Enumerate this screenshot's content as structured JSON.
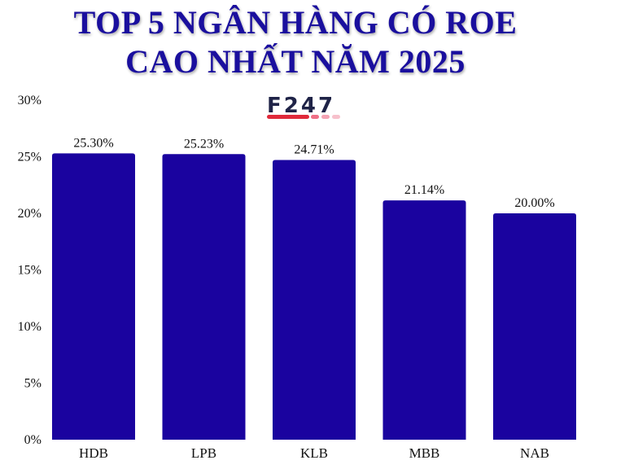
{
  "chart_data": {
    "type": "bar",
    "title_lines": [
      "TOP 5 NGÂN HÀNG CÓ ROE",
      "CAO NHẤT NĂM 2025"
    ],
    "categories": [
      "HDB",
      "LPB",
      "KLB",
      "MBB",
      "NAB"
    ],
    "values": [
      25.3,
      25.23,
      24.71,
      21.14,
      20.0
    ],
    "data_labels": [
      "25.30%",
      "25.23%",
      "24.71%",
      "21.14%",
      "20.00%"
    ],
    "ylim": [
      0,
      30
    ],
    "yticks": [
      0,
      5,
      10,
      15,
      20,
      25,
      30
    ],
    "ytick_labels": [
      "0%",
      "5%",
      "10%",
      "15%",
      "20%",
      "25%",
      "30%"
    ],
    "grid": false,
    "bar_color": "#1a039f"
  },
  "logo": {
    "text": "F247",
    "colors": [
      "#1f2347",
      "#e0293a",
      "#f4a3b4"
    ]
  }
}
